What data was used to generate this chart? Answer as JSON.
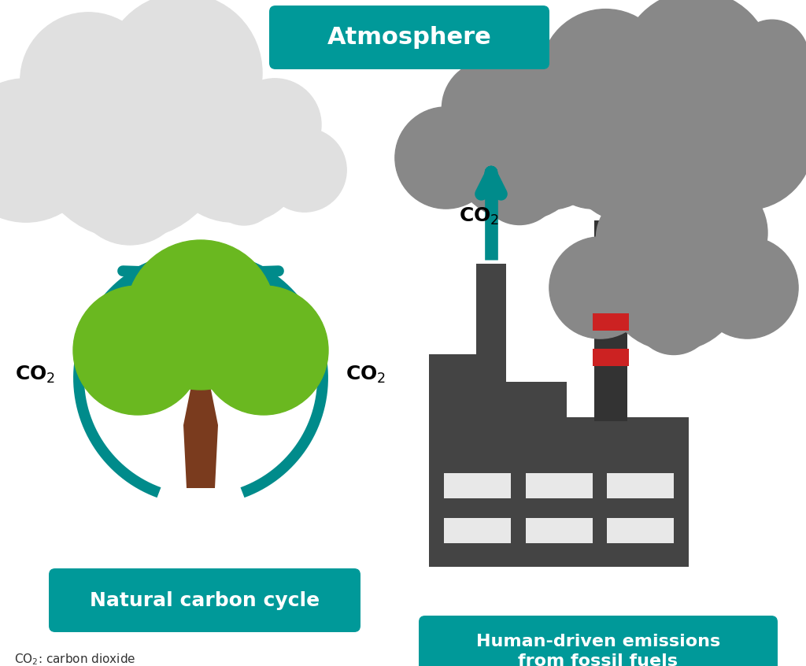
{
  "background_color": "#ffffff",
  "teal": "#008b8b",
  "teal_box": "#009999",
  "tree_green": "#6ab820",
  "tree_brown": "#7a3b1e",
  "cloud_light": "#e0e0e0",
  "cloud_dark": "#888888",
  "factory_color": "#444444",
  "factory_dark": "#333333",
  "factory_red": "#cc2222",
  "title_atmosphere": "Atmosphere",
  "label_natural": "Natural carbon cycle",
  "label_human": "Human-driven emissions\nfrom fossil fuels",
  "footnote_co2": "CO",
  "footnote_2": "2",
  "footnote_rest": ": carbon dioxide"
}
